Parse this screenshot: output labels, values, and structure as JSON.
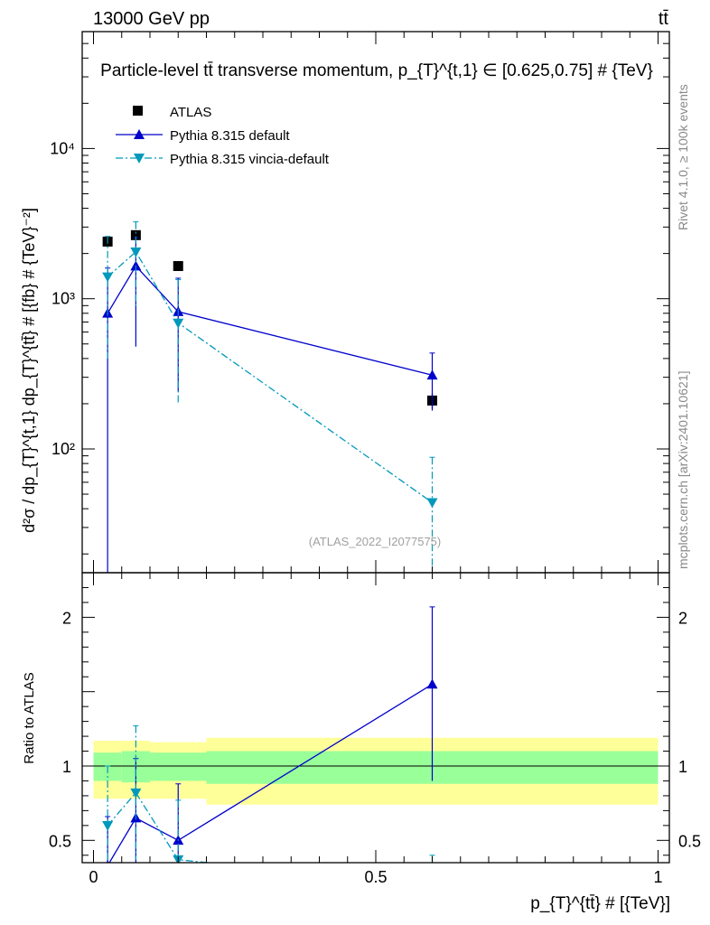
{
  "header": {
    "energy_label": "13000 GeV pp",
    "process_label": "tt̄"
  },
  "side_labels": {
    "rivet": "Rivet 4.1.0, ≥ 100k events",
    "mcplots": "mcplots.cern.ch [arXiv:2401.10621]"
  },
  "chart_data": [
    {
      "type": "line",
      "panel": "main",
      "title": "Particle-level tt̄ transverse momentum, p_{T}^{t,1} ∈ [0.625,0.75] # {TeV}",
      "ylabel": "d²σ / dp_{T}^{t,1} dp_{T}^{tt̄} # [{fb} # {TeV}⁻²]",
      "yscale": "log",
      "ylim": [
        15,
        60000
      ],
      "xlim": [
        -0.02,
        1.02
      ],
      "y_ticks": [
        100,
        1000,
        10000
      ],
      "y_tick_labels": [
        "10²",
        "10³",
        "10⁴"
      ],
      "watermark": "(ATLAS_2022_I2077575)",
      "legend": {
        "placement": "top-left"
      },
      "series": [
        {
          "name": "ATLAS",
          "style": "data",
          "color": "#000000",
          "marker": "square",
          "x": [
            0.025,
            0.075,
            0.15,
            0.6
          ],
          "y": [
            2400,
            2650,
            1650,
            210
          ],
          "xerr": [
            0.025,
            0.025,
            0.05,
            0.4
          ],
          "yerr_low": [
            150,
            150,
            100,
            25
          ],
          "yerr_high": [
            150,
            150,
            100,
            25
          ]
        },
        {
          "name": "Pythia 8.315 default",
          "style": "solid",
          "color": "#0000cc",
          "marker": "triangle-up",
          "x": [
            0.025,
            0.075,
            0.15,
            0.6
          ],
          "y": [
            800,
            1650,
            820,
            310
          ],
          "yerr_low": [
            790,
            1170,
            580,
            130
          ],
          "yerr_high": [
            800,
            900,
            550,
            125
          ]
        },
        {
          "name": "Pythia 8.315 vincia-default",
          "style": "dashdot",
          "color": "#0099bb",
          "marker": "triangle-down",
          "x": [
            0.025,
            0.075,
            0.15,
            0.6
          ],
          "y": [
            1400,
            2050,
            690,
            44
          ],
          "yerr_low": [
            1000,
            1170,
            490,
            44
          ],
          "yerr_high": [
            1200,
            1200,
            650,
            44
          ]
        }
      ]
    },
    {
      "type": "line",
      "panel": "ratio",
      "ylabel": "Ratio to ATLAS",
      "xlabel": "p_{T}^{tt̄} # [{TeV}]",
      "ylim": [
        0.35,
        2.3
      ],
      "xlim": [
        -0.02,
        1.02
      ],
      "x_ticks": [
        0,
        0.5,
        1
      ],
      "x_tick_labels": [
        "0",
        "0.5",
        "1"
      ],
      "y_ticks": [
        0.5,
        1,
        2
      ],
      "y_tick_labels": [
        "0.5",
        "1",
        "2"
      ],
      "bands": {
        "bins": [
          [
            0,
            0.05
          ],
          [
            0.05,
            0.1
          ],
          [
            0.1,
            0.2
          ],
          [
            0.2,
            1.0
          ]
        ],
        "stat_low": [
          0.9,
          0.89,
          0.9,
          0.88
        ],
        "stat_high": [
          1.09,
          1.1,
          1.09,
          1.1
        ],
        "total_low": [
          0.78,
          0.78,
          0.78,
          0.74
        ],
        "total_high": [
          1.17,
          1.17,
          1.16,
          1.19
        ],
        "stat_color": "#99ff99",
        "total_color": "#ffff99"
      },
      "series": [
        {
          "name": "Pythia 8.315 default",
          "color": "#0000cc",
          "marker": "triangle-up",
          "x": [
            0.025,
            0.075,
            0.15,
            0.6
          ],
          "y": [
            0.33,
            0.65,
            0.5,
            1.55
          ],
          "yerr_low": [
            0.33,
            0.45,
            0.35,
            0.65
          ],
          "yerr_high": [
            0.33,
            0.4,
            0.38,
            0.52
          ]
        },
        {
          "name": "Pythia 8.315 vincia-default",
          "color": "#0099bb",
          "marker": "triangle-down",
          "x": [
            0.025,
            0.075,
            0.15,
            0.6
          ],
          "y": [
            0.6,
            0.82,
            0.37,
            0.2
          ],
          "yerr_low": [
            0.4,
            0.45,
            0.3,
            0.2
          ],
          "yerr_high": [
            0.4,
            0.45,
            0.4,
            0.2
          ]
        }
      ]
    }
  ]
}
